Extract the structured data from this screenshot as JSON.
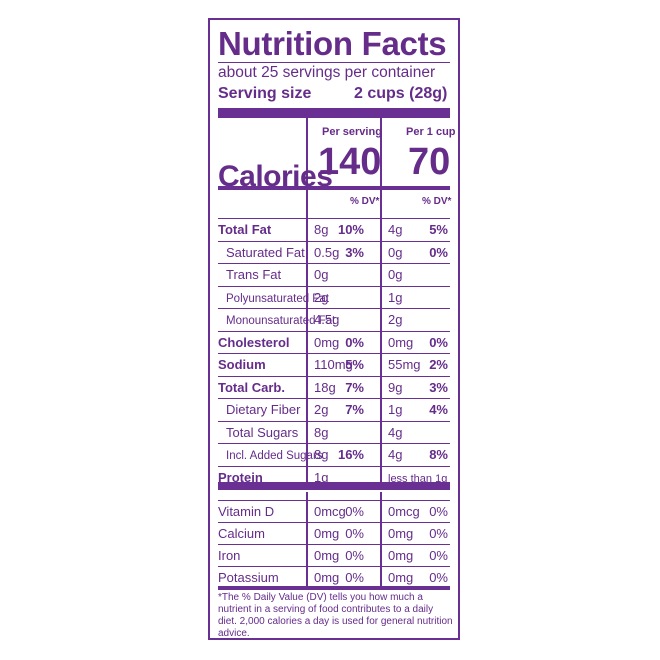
{
  "title": "Nutrition Facts",
  "servings_per_container": "about 25 servings per container",
  "serving_size_label": "Serving size",
  "serving_size_amount": "2 cups (28g)",
  "col1_header": "Per serving",
  "col2_header": "Per 1 cup",
  "calories_label": "Calories",
  "calories_col1": "140",
  "calories_col2": "70",
  "dv_header": "% DV*",
  "nutrients": [
    {
      "name": "Total Fat",
      "a1": "8g",
      "p1": "10%",
      "a2": "4g",
      "p2": "5%"
    },
    {
      "name": "Saturated Fat",
      "a1": "0.5g",
      "p1": "3%",
      "a2": "0g",
      "p2": "0%"
    },
    {
      "name": "Trans Fat",
      "a1": "0g",
      "p1": "",
      "a2": "0g",
      "p2": ""
    },
    {
      "name": "Polyunsaturated Fat",
      "a1": "2g",
      "p1": "",
      "a2": "1g",
      "p2": ""
    },
    {
      "name": "Monounsaturated Fat",
      "a1": "4.5g",
      "p1": "",
      "a2": "2g",
      "p2": ""
    },
    {
      "name": "Cholesterol",
      "a1": "0mg",
      "p1": "0%",
      "a2": "0mg",
      "p2": "0%"
    },
    {
      "name": "Sodium",
      "a1": "110mg",
      "p1": "5%",
      "a2": "55mg",
      "p2": "2%"
    },
    {
      "name": "Total Carb.",
      "a1": "18g",
      "p1": "7%",
      "a2": "9g",
      "p2": "3%"
    },
    {
      "name": "Dietary Fiber",
      "a1": "2g",
      "p1": "7%",
      "a2": "1g",
      "p2": "4%"
    },
    {
      "name": "Total Sugars",
      "a1": "8g",
      "p1": "",
      "a2": "4g",
      "p2": ""
    },
    {
      "name": "Incl. Added Sugars",
      "a1": "8g",
      "p1": "16%",
      "a2": "4g",
      "p2": "8%"
    },
    {
      "name": "Protein",
      "a1": "1g",
      "p1": "",
      "a2": "less than 1g",
      "p2": ""
    }
  ],
  "vitamins": [
    {
      "name": "Vitamin D",
      "a1": "0mcg",
      "p1": "0%",
      "a2": "0mcg",
      "p2": "0%"
    },
    {
      "name": "Calcium",
      "a1": "0mg",
      "p1": "0%",
      "a2": "0mg",
      "p2": "0%"
    },
    {
      "name": "Iron",
      "a1": "0mg",
      "p1": "0%",
      "a2": "0mg",
      "p2": "0%"
    },
    {
      "name": "Potassium",
      "a1": "0mg",
      "p1": "0%",
      "a2": "0mg",
      "p2": "0%"
    }
  ],
  "footnote": "*The % Daily Value (DV) tells you how much a nutrient in a serving of food contributes to a daily diet. 2,000 calories a day is used for general nutrition advice.",
  "colors": {
    "accent": "#6a2f92",
    "text": "#652c8a",
    "background": "#ffffff"
  }
}
